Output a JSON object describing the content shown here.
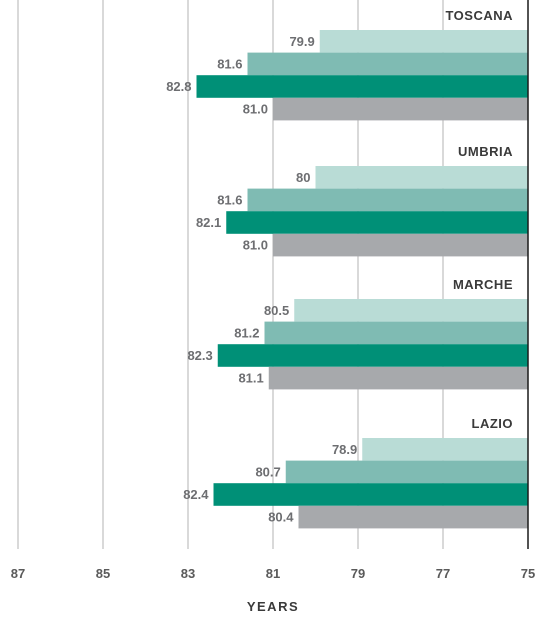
{
  "chart_data": {
    "type": "bar",
    "orientation": "horizontal",
    "x_reversed": true,
    "xlabel": "YEARS",
    "xlim": [
      75,
      87
    ],
    "x_ticks": [
      87,
      85,
      83,
      81,
      79,
      77,
      75
    ],
    "grid": true,
    "categories": [
      "TOSCANA",
      "UMBRIA",
      "MARCHE",
      "LAZIO"
    ],
    "series": [
      {
        "color": "#b9dcd6",
        "values": [
          79.9,
          80,
          80.5,
          78.9
        ],
        "labels": [
          "79.9",
          "80",
          "80.5",
          "78.9"
        ]
      },
      {
        "color": "#7fbbb3",
        "values": [
          81.6,
          81.6,
          81.2,
          80.7
        ],
        "labels": [
          "81.6",
          "81.6",
          "81.2",
          "80.7"
        ]
      },
      {
        "color": "#009077",
        "values": [
          82.8,
          82.1,
          82.3,
          82.4
        ],
        "labels": [
          "82.8",
          "82.1",
          "82.3",
          "82.4"
        ]
      },
      {
        "color": "#a7a9ac",
        "values": [
          81.0,
          81.0,
          81.1,
          80.4
        ],
        "labels": [
          "81.0",
          "81.0",
          "81.1",
          "80.4"
        ]
      }
    ]
  }
}
